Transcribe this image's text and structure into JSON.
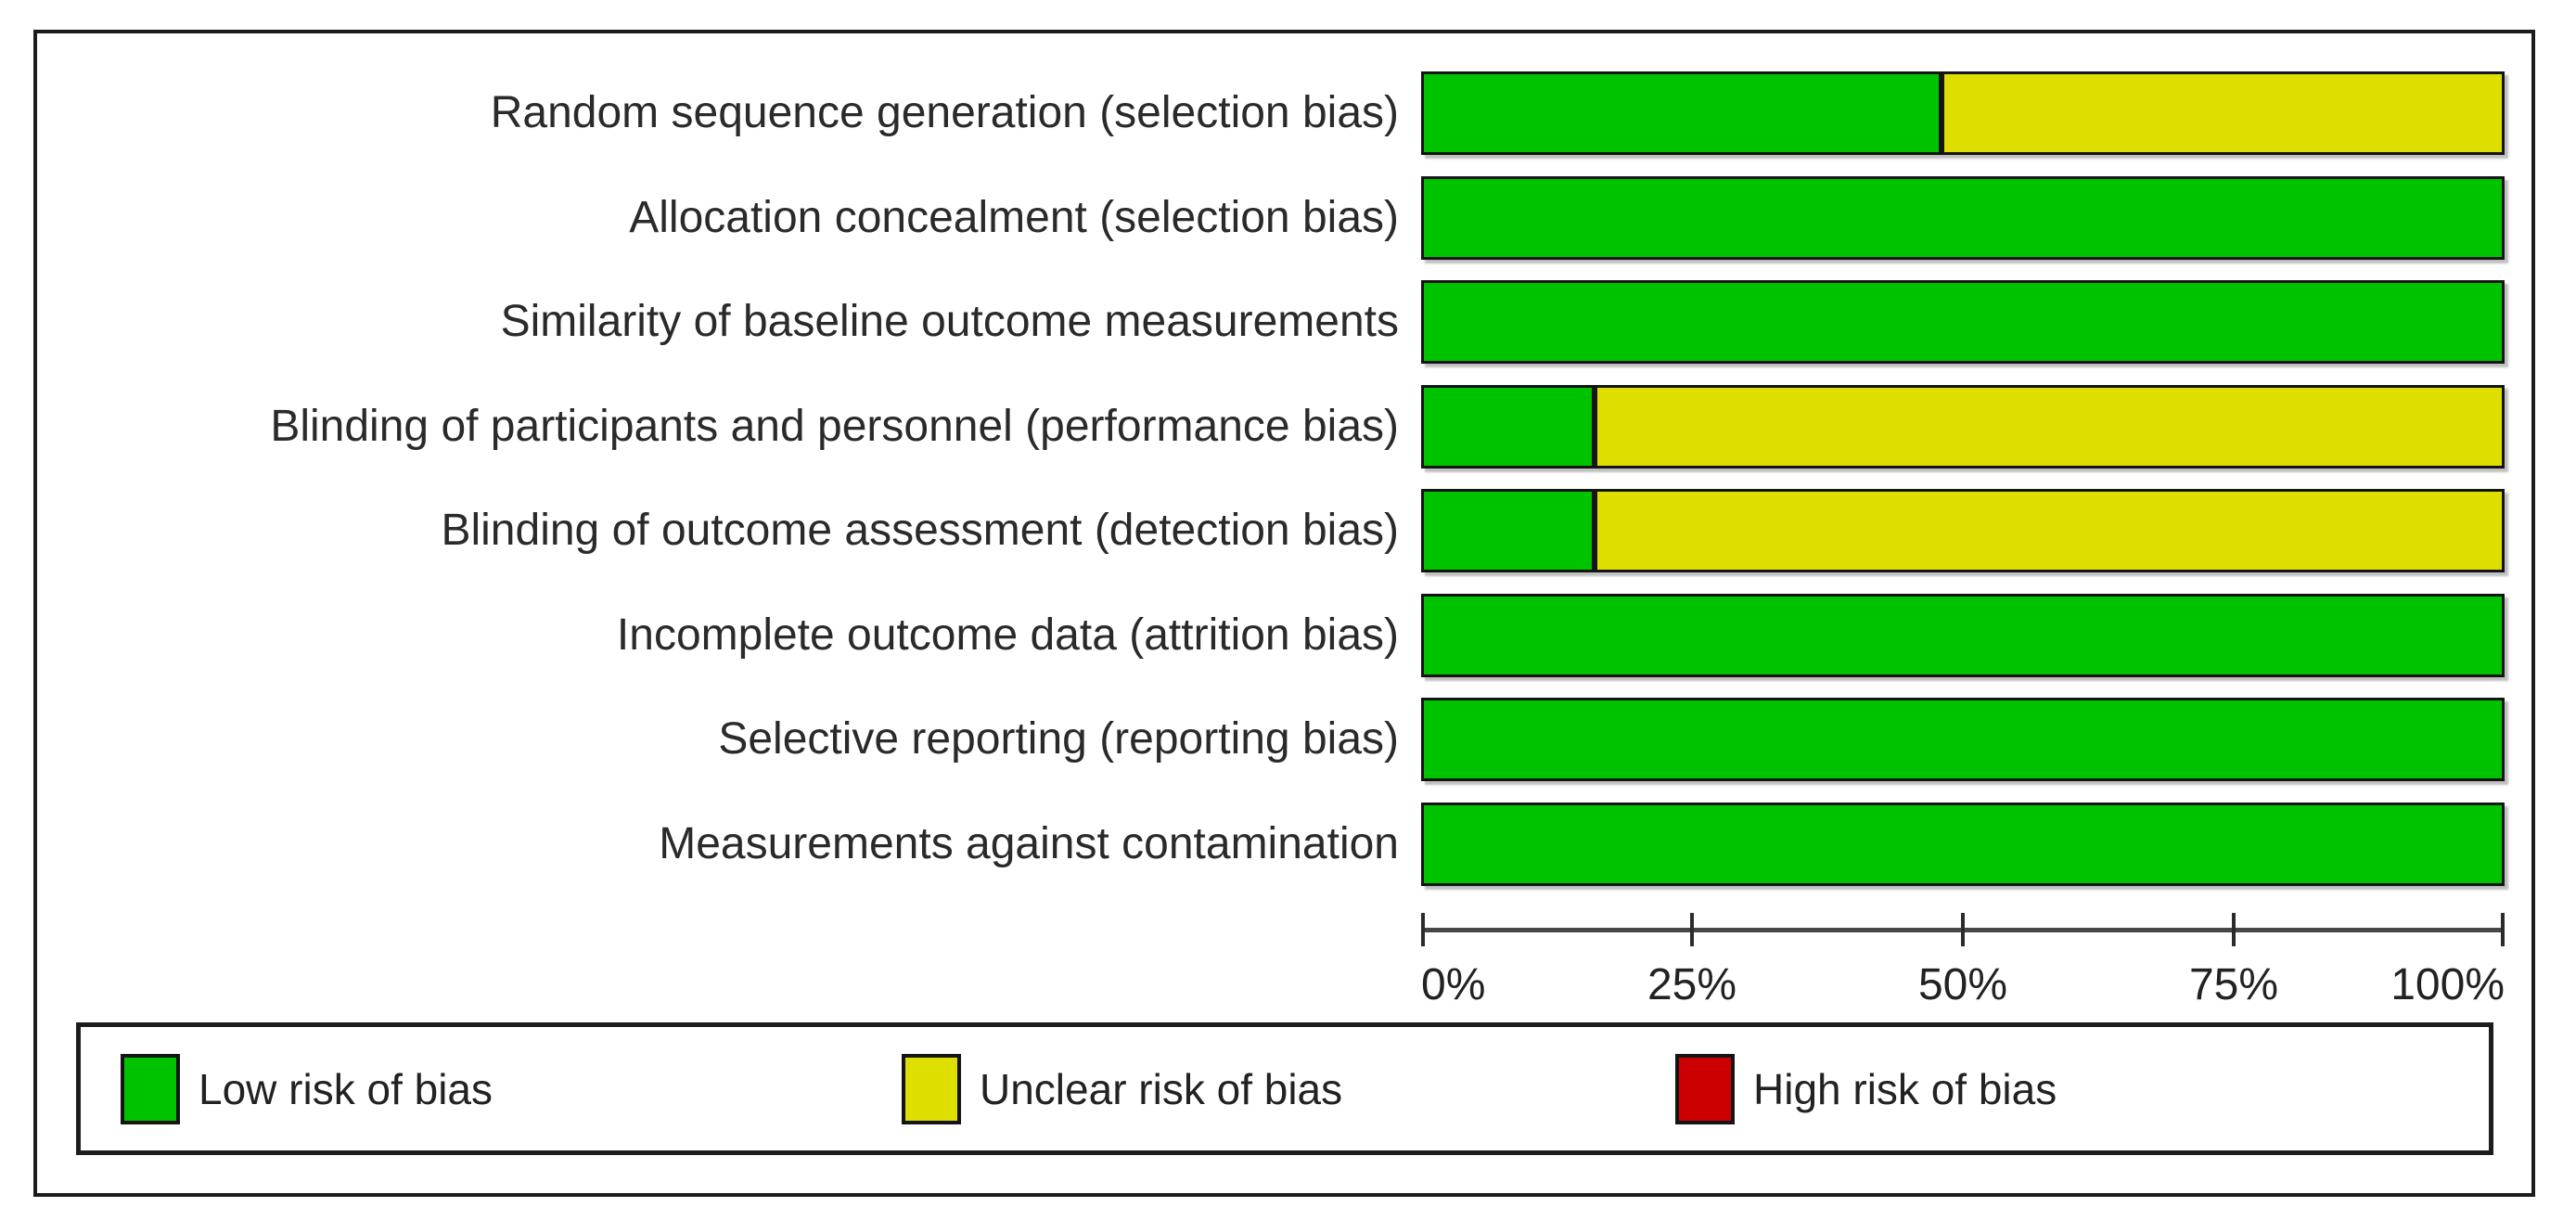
{
  "chart_data": {
    "type": "bar",
    "subtype": "horizontal-stacked-percentage",
    "title": "",
    "xlabel": "",
    "ylabel": "",
    "xlim": [
      0,
      100
    ],
    "grid": false,
    "legend_position": "bottom",
    "x_ticks": [
      "0%",
      "25%",
      "50%",
      "75%",
      "100%"
    ],
    "categories": [
      "Random sequence generation (selection bias)",
      "Allocation concealment (selection bias)",
      "Similarity of baseline outcome measurements",
      "Blinding of participants and personnel (performance bias)",
      "Blinding of outcome assessment (detection bias)",
      "Incomplete outcome data (attrition bias)",
      "Selective reporting (reporting bias)",
      "Measurements against contamination"
    ],
    "series": [
      {
        "name": "Low risk of bias",
        "color": "#00C300",
        "values": [
          48,
          100,
          100,
          16,
          16,
          100,
          100,
          100
        ]
      },
      {
        "name": "Unclear risk of bias",
        "color": "#DEDE00",
        "values": [
          52,
          0,
          0,
          84,
          84,
          0,
          0,
          0
        ]
      },
      {
        "name": "High risk of bias",
        "color": "#CC0000",
        "values": [
          0,
          0,
          0,
          0,
          0,
          0,
          0,
          0
        ]
      }
    ]
  },
  "legend": {
    "items": [
      {
        "label": "Low risk of bias",
        "color": "#00C300"
      },
      {
        "label": "Unclear risk of bias",
        "color": "#DEDE00"
      },
      {
        "label": "High risk of bias",
        "color": "#CC0000"
      }
    ]
  },
  "colors": {
    "low": "#00C300",
    "unclear": "#DEDE00",
    "high": "#CC0000",
    "frame_border": "#1c1c1c",
    "axis": "#474747",
    "text": "#2a2a2a"
  }
}
